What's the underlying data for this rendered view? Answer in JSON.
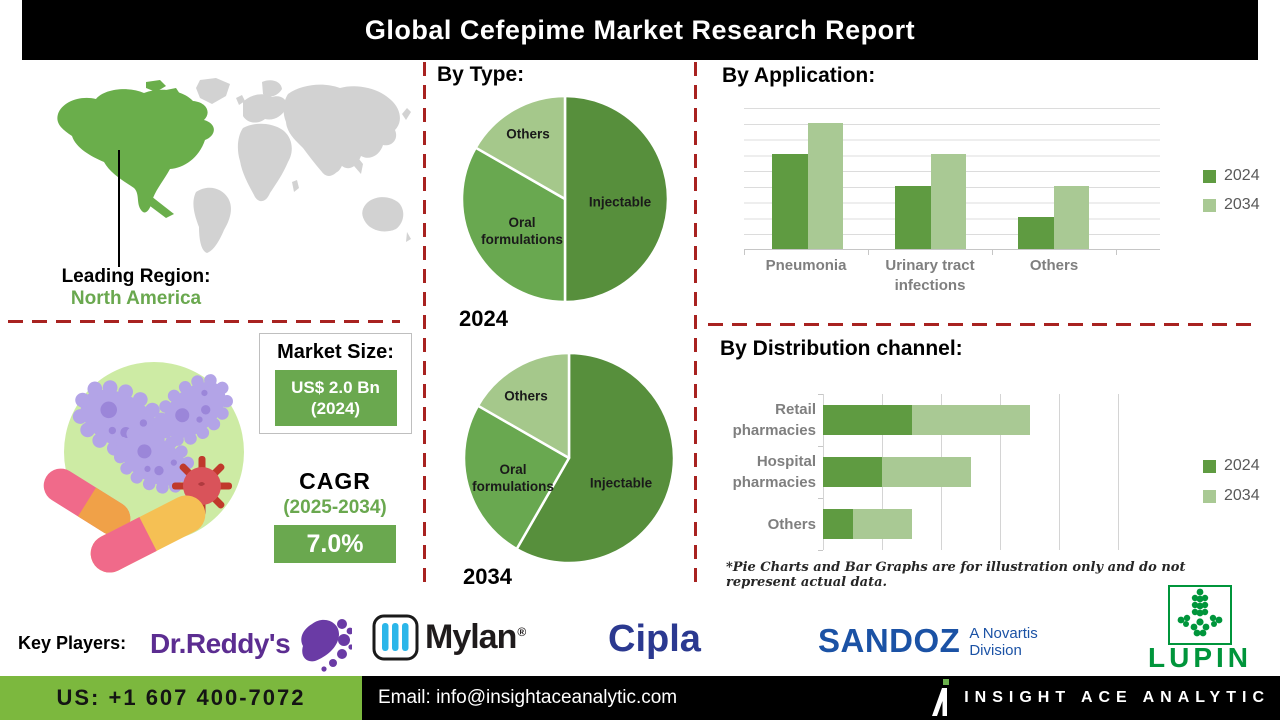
{
  "title": "Global Cefepime Market Research Report",
  "leading_region": {
    "label": "Leading Region:",
    "value": "North America"
  },
  "market_size": {
    "label": "Market Size:",
    "value": "US$ 2.0 Bn",
    "year": "(2024)"
  },
  "cagr": {
    "label": "CAGR",
    "period": "(2025-2034)",
    "value": "7.0%"
  },
  "sections": {
    "by_type": "By Type:",
    "by_application": "By Application:",
    "by_distribution": "By Distribution channel:"
  },
  "footnote": "*Pie Charts and Bar Graphs are for illustration only and do not represent actual data.",
  "key_players": {
    "label": "Key Players:",
    "dr_reddys": "Dr.Reddy's",
    "mylan": "Mylan",
    "mylan_reg": "®",
    "cipla": "Cipla",
    "sandoz": "SANDOZ",
    "sandoz_sub1": "A Novartis",
    "sandoz_sub2": "Division",
    "lupin": "LUPIN"
  },
  "footer": {
    "phone": "US: +1 607 400-7072",
    "email": "Email: info@insightaceanalytic.com",
    "brand": "INSIGHT ACE ANALYTIC"
  },
  "colors": {
    "accent_green": "#6aa84f",
    "series_2024": "#5f9b41",
    "series_2034": "#a9c994",
    "map_green": "#6aae4b",
    "map_gray": "#d2d2d2",
    "divider_red": "#a82220",
    "footer_green": "#7cb83e"
  },
  "chart_data": [
    {
      "id": "by_type_2024",
      "type": "pie",
      "title": "2024",
      "labels": [
        "Injectable",
        "Oral formulations",
        "Others"
      ],
      "values": [
        50,
        33.3,
        16.7
      ],
      "colors": [
        "#578f3c",
        "#69a850",
        "#a5c88b"
      ]
    },
    {
      "id": "by_type_2034",
      "type": "pie",
      "title": "2034",
      "labels": [
        "Injectable",
        "Oral formulations",
        "Others"
      ],
      "values": [
        58.3,
        25,
        16.7
      ],
      "colors": [
        "#578f3c",
        "#69a850",
        "#a5c88b"
      ]
    },
    {
      "id": "by_application",
      "type": "bar",
      "categories": [
        "Pneumonia",
        "Urinary tract\ninfections",
        "Others"
      ],
      "series": [
        {
          "name": "2024",
          "color": "#5f9b41",
          "values": [
            3,
            2,
            1
          ]
        },
        {
          "name": "2034",
          "color": "#a9c994",
          "values": [
            4,
            3,
            2
          ]
        }
      ],
      "ylim": [
        0,
        4.5
      ],
      "grid_step": 0.5,
      "grid": true,
      "legend_position": "right"
    },
    {
      "id": "by_distribution",
      "type": "bar-horizontal-stacked",
      "categories": [
        "Retail pharmacies",
        "Hospital\npharmacies",
        "Others"
      ],
      "series": [
        {
          "name": "2024",
          "color": "#5f9b41",
          "values": [
            1.5,
            1,
            0.5
          ]
        },
        {
          "name": "2034",
          "color": "#a9c994",
          "values": [
            2,
            1.5,
            1
          ]
        }
      ],
      "xlim": [
        0,
        5
      ],
      "grid_step": 1,
      "grid": true,
      "legend_position": "right"
    }
  ]
}
